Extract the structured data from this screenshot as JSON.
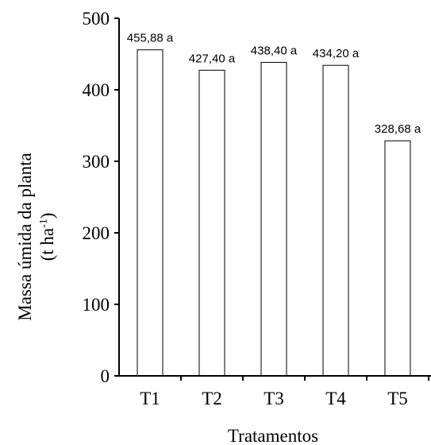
{
  "chart_data": {
    "type": "bar",
    "title": "",
    "xlabel": "Tratamentos",
    "ylabel_line1": "Massa úmida da planta",
    "ylabel_line2_prefix": "(t ha",
    "ylabel_line2_sup": "-1",
    "ylabel_line2_suffix": ")",
    "categories": [
      "T1",
      "T2",
      "T3",
      "T4",
      "T5"
    ],
    "values": [
      455.88,
      427.4,
      438.4,
      434.2,
      328.68
    ],
    "data_labels": [
      "455,88 a",
      "427,40 a",
      "438,40 a",
      "434,20 a",
      "328,68 a"
    ],
    "ylim": [
      0,
      500
    ],
    "yticks": [
      0,
      100,
      200,
      300,
      400,
      500
    ],
    "ytick_labels": [
      "0",
      "100",
      "200",
      "300",
      "400",
      "500"
    ],
    "grid": false,
    "legend": "none",
    "bar_fill": "#ffffff",
    "bar_stroke": "#000000"
  }
}
